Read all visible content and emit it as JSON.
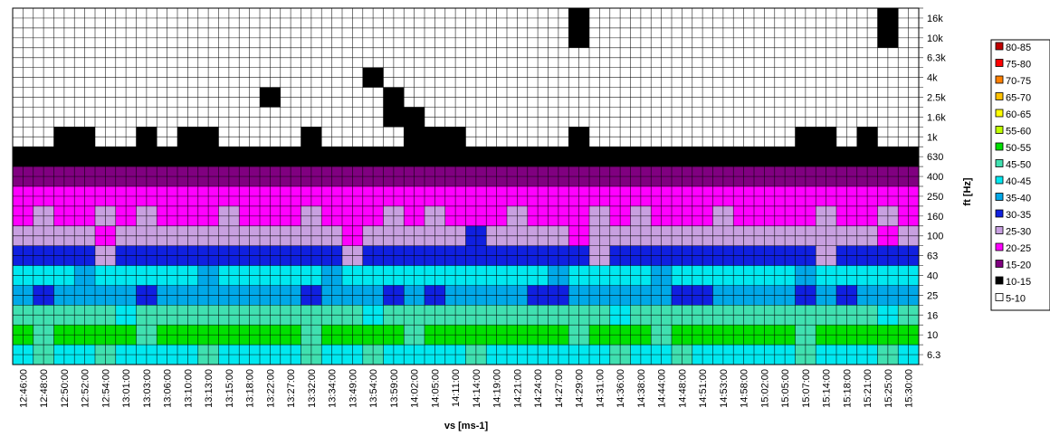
{
  "chart_data": {
    "type": "heatmap",
    "x_label": "vs [ms-1]",
    "y_label": "ft [Hz]",
    "categories": [
      "12:46:00",
      "12:48:00",
      "12:50:00",
      "12:52:00",
      "12:54:00",
      "13:01:00",
      "13:03:00",
      "13:06:00",
      "13:10:00",
      "13:13:00",
      "13:15:00",
      "13:18:00",
      "13:22:00",
      "13:27:00",
      "13:32:00",
      "13:34:00",
      "13:49:00",
      "13:54:00",
      "13:59:00",
      "14:02:00",
      "14:05:00",
      "14:11:00",
      "14:14:00",
      "14:19:00",
      "14:21:00",
      "14:24:00",
      "14:27:00",
      "14:29:00",
      "14:31:00",
      "14:36:00",
      "14:38:00",
      "14:44:00",
      "14:48:00",
      "14:51:00",
      "14:53:00",
      "14:58:00",
      "15:02:00",
      "15:05:00",
      "15:07:00",
      "15:14:00",
      "15:18:00",
      "15:21:00",
      "15:25:00",
      "15:30:00"
    ],
    "y_categories": [
      "16k",
      "10k",
      "6.3k",
      "4k",
      "2.5k",
      "1.6k",
      "1k",
      "630",
      "400",
      "250",
      "160",
      "100",
      "63",
      "40",
      "25",
      "16",
      "10",
      "6.3"
    ],
    "legend": [
      {
        "label": "80-85",
        "color": "#c00000"
      },
      {
        "label": "75-80",
        "color": "#ff0000"
      },
      {
        "label": "70-75",
        "color": "#ff8000"
      },
      {
        "label": "65-70",
        "color": "#ffc000"
      },
      {
        "label": "60-65",
        "color": "#ffff00"
      },
      {
        "label": "55-60",
        "color": "#c0ff00"
      },
      {
        "label": "50-55",
        "color": "#00e000"
      },
      {
        "label": "45-50",
        "color": "#40e0b0"
      },
      {
        "label": "40-45",
        "color": "#00e8f0"
      },
      {
        "label": "35-40",
        "color": "#00a8e8"
      },
      {
        "label": "30-35",
        "color": "#1020e0"
      },
      {
        "label": "25-30",
        "color": "#c8a0e0"
      },
      {
        "label": "20-25",
        "color": "#ff00ff"
      },
      {
        "label": "15-20",
        "color": "#800080"
      },
      {
        "label": "10-15",
        "color": "#000000"
      },
      {
        "label": "5-10",
        "color": "#ffffff"
      }
    ],
    "z": [
      [
        7,
        7,
        7,
        7,
        7,
        7,
        7,
        7,
        7,
        7,
        7,
        7,
        7,
        7,
        7,
        7,
        7,
        7,
        7,
        7,
        7,
        7,
        7,
        7,
        7,
        7,
        7,
        12,
        7,
        7,
        7,
        7,
        7,
        7,
        7,
        7,
        7,
        7,
        7,
        7,
        7,
        7,
        12,
        7
      ],
      [
        7,
        7,
        7,
        7,
        7,
        7,
        7,
        7,
        7,
        7,
        7,
        7,
        7,
        7,
        7,
        7,
        7,
        7,
        7,
        7,
        7,
        7,
        7,
        7,
        7,
        7,
        7,
        12,
        7,
        7,
        7,
        7,
        7,
        7,
        7,
        7,
        7,
        7,
        7,
        7,
        7,
        7,
        12,
        7
      ],
      [
        7,
        7,
        7,
        7,
        7,
        7,
        7,
        7,
        7,
        7,
        7,
        7,
        7,
        7,
        7,
        7,
        7,
        7,
        7,
        7,
        7,
        7,
        7,
        7,
        7,
        7,
        7,
        7,
        7,
        7,
        7,
        7,
        7,
        7,
        7,
        7,
        7,
        7,
        7,
        7,
        7,
        7,
        7,
        7
      ],
      [
        7,
        7,
        7,
        7,
        7,
        7,
        7,
        7,
        7,
        7,
        7,
        7,
        7,
        7,
        7,
        7,
        7,
        12,
        7,
        7,
        7,
        7,
        7,
        7,
        7,
        7,
        7,
        7,
        7,
        7,
        7,
        7,
        7,
        7,
        7,
        7,
        7,
        7,
        7,
        7,
        7,
        7,
        7,
        7
      ],
      [
        7,
        7,
        7,
        7,
        7,
        7,
        7,
        7,
        7,
        7,
        7,
        7,
        12,
        7,
        7,
        7,
        7,
        7,
        12,
        7,
        7,
        7,
        7,
        7,
        7,
        7,
        7,
        7,
        7,
        7,
        7,
        7,
        7,
        7,
        7,
        7,
        7,
        7,
        7,
        7,
        7,
        7,
        7,
        7
      ],
      [
        7,
        7,
        7,
        7,
        7,
        7,
        7,
        7,
        7,
        7,
        7,
        7,
        7,
        7,
        7,
        7,
        7,
        7,
        12,
        12,
        7,
        7,
        7,
        7,
        7,
        7,
        7,
        7,
        7,
        7,
        7,
        7,
        7,
        7,
        7,
        7,
        7,
        7,
        7,
        7,
        7,
        7,
        7,
        7
      ],
      [
        8,
        8,
        12,
        12,
        8,
        8,
        12,
        8,
        12,
        12,
        8,
        8,
        8,
        8,
        12,
        8,
        8,
        8,
        8,
        12,
        12,
        12,
        8,
        8,
        8,
        8,
        8,
        12,
        8,
        8,
        8,
        8,
        8,
        8,
        8,
        8,
        8,
        8,
        12,
        12,
        8,
        12,
        8,
        8
      ],
      [
        12,
        11,
        12,
        12,
        12,
        11,
        12,
        12,
        12,
        12,
        12,
        12,
        12,
        12,
        12,
        11,
        12,
        12,
        12,
        12,
        12,
        11,
        12,
        12,
        12,
        12,
        11,
        12,
        12,
        11,
        11,
        12,
        12,
        11,
        11,
        12,
        11,
        12,
        12,
        11,
        12,
        12,
        12,
        12
      ],
      [
        17,
        16,
        17,
        18,
        17,
        17,
        16,
        17,
        17,
        18,
        17,
        17,
        17,
        16,
        17,
        18,
        17,
        17,
        16,
        17,
        17,
        17,
        16,
        17,
        17,
        18,
        17,
        17,
        16,
        17,
        17,
        17,
        18,
        17,
        17,
        16,
        17,
        17,
        18,
        17,
        17,
        16,
        17,
        17
      ],
      [
        22,
        21,
        22,
        22,
        23,
        22,
        22,
        21,
        22,
        22,
        22,
        22,
        23,
        22,
        21,
        22,
        22,
        22,
        22,
        21,
        22,
        23,
        22,
        22,
        21,
        22,
        22,
        23,
        22,
        22,
        22,
        21,
        22,
        22,
        21,
        22,
        23,
        22,
        22,
        22,
        21,
        22,
        22,
        22
      ],
      [
        24,
        26,
        24,
        23,
        26,
        24,
        25,
        24,
        23,
        24,
        26,
        24,
        23,
        24,
        26,
        24,
        24,
        23,
        25,
        24,
        26,
        24,
        24,
        24,
        26,
        23,
        24,
        24,
        25,
        24,
        26,
        24,
        23,
        24,
        26,
        24,
        24,
        23,
        24,
        25,
        24,
        24,
        26,
        24
      ],
      [
        27,
        28,
        26,
        27,
        24,
        27,
        28,
        27,
        27,
        26,
        27,
        27,
        27,
        26,
        27,
        27,
        24,
        27,
        27,
        27,
        27,
        27,
        32,
        27,
        27,
        26,
        27,
        24,
        27,
        27,
        26,
        27,
        27,
        27,
        26,
        27,
        27,
        28,
        27,
        26,
        27,
        27,
        24,
        27
      ],
      [
        31,
        30,
        32,
        31,
        29,
        31,
        31,
        30,
        31,
        32,
        31,
        31,
        32,
        31,
        30,
        31,
        29,
        31,
        31,
        32,
        31,
        30,
        31,
        31,
        30,
        32,
        31,
        31,
        29,
        31,
        31,
        30,
        31,
        32,
        31,
        31,
        30,
        31,
        31,
        29,
        31,
        32,
        31,
        31
      ],
      [
        41,
        40,
        41,
        38,
        41,
        41,
        40,
        41,
        41,
        39,
        41,
        41,
        41,
        40,
        41,
        38,
        41,
        41,
        41,
        40,
        41,
        41,
        40,
        41,
        41,
        41,
        39,
        41,
        40,
        41,
        41,
        38,
        41,
        41,
        40,
        41,
        41,
        41,
        39,
        41,
        41,
        40,
        41,
        41
      ],
      [
        37,
        33,
        37,
        36,
        37,
        37,
        33,
        37,
        37,
        36,
        37,
        37,
        37,
        36,
        33,
        37,
        37,
        37,
        33,
        37,
        33,
        37,
        37,
        36,
        37,
        33,
        33,
        37,
        37,
        36,
        37,
        37,
        33,
        33,
        37,
        36,
        37,
        37,
        33,
        37,
        33,
        37,
        36,
        37
      ],
      [
        46,
        45,
        47,
        46,
        46,
        44,
        46,
        46,
        45,
        46,
        46,
        46,
        46,
        45,
        46,
        47,
        46,
        44,
        46,
        46,
        46,
        45,
        46,
        46,
        47,
        46,
        45,
        46,
        46,
        44,
        46,
        46,
        46,
        45,
        46,
        46,
        46,
        47,
        46,
        46,
        45,
        46,
        44,
        46
      ],
      [
        51,
        49,
        52,
        51,
        50,
        51,
        48,
        51,
        51,
        52,
        50,
        51,
        50,
        51,
        49,
        51,
        51,
        52,
        51,
        48,
        51,
        50,
        51,
        52,
        51,
        50,
        51,
        49,
        51,
        51,
        51,
        48,
        51,
        50,
        51,
        52,
        51,
        51,
        49,
        51,
        50,
        51,
        51,
        52
      ],
      [
        43,
        45,
        43,
        44,
        48,
        43,
        43,
        44,
        43,
        45,
        43,
        43,
        44,
        43,
        45,
        43,
        43,
        48,
        43,
        44,
        43,
        43,
        45,
        43,
        43,
        44,
        43,
        43,
        43,
        45,
        43,
        44,
        48,
        43,
        43,
        43,
        44,
        43,
        45,
        43,
        43,
        44,
        48,
        43
      ]
    ]
  }
}
